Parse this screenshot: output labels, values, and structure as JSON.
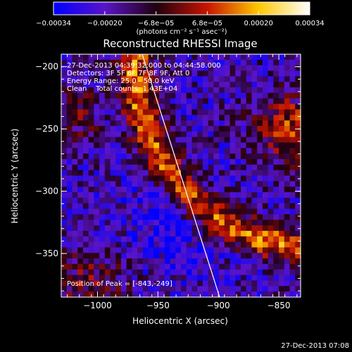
{
  "chart_data": {
    "type": "heatmap",
    "title": "Reconstructed RHESSI Image",
    "xlabel": "Heliocentric X (arcsec)",
    "ylabel": "Heliocentric Y (arcsec)",
    "xlim": [
      -1030,
      -832
    ],
    "ylim": [
      -385,
      -190
    ],
    "x_ticks": [
      {
        "value": -1000,
        "label": "−1000"
      },
      {
        "value": -950,
        "label": "−950"
      },
      {
        "value": -900,
        "label": "−900"
      },
      {
        "value": -850,
        "label": "−850"
      }
    ],
    "y_ticks": [
      {
        "value": -200,
        "label": "−200"
      },
      {
        "value": -250,
        "label": "−250"
      },
      {
        "value": -300,
        "label": "−300"
      },
      {
        "value": -350,
        "label": "−350"
      }
    ],
    "colorbar": {
      "range": [
        -0.00034,
        0.00034
      ],
      "tick_labels": [
        "−0.00034",
        "−0.00020",
        "−6.8e−05",
        "6.8e−05",
        "0.00020",
        "0.00034"
      ],
      "unit_label": "(photons cm⁻² s⁻¹ asec⁻²)",
      "colors": [
        "#0000ff",
        "#5a14c8",
        "#200010",
        "#c81400",
        "#ffc800",
        "#ffffff"
      ]
    },
    "annotations": {
      "time_range": "27-Dec-2013 04:39:32.000 to 04:44:58.000",
      "detectors": "Detectors: 3F 5F 6F 7F 8F 9F, Att 0",
      "energy_range": "Energy Range: 25.0 - 50.0 keV",
      "method": "Clean    Total counts: 1.43E+04",
      "peak": "Position of Peak = [-843,-249]"
    },
    "peak": {
      "x": -843,
      "y": -249
    },
    "limb_line": {
      "x1": -963,
      "y1": -190,
      "x2": -899,
      "y2": -385
    }
  },
  "footer": {
    "timestamp": "27-Dec-2013 07:08"
  }
}
